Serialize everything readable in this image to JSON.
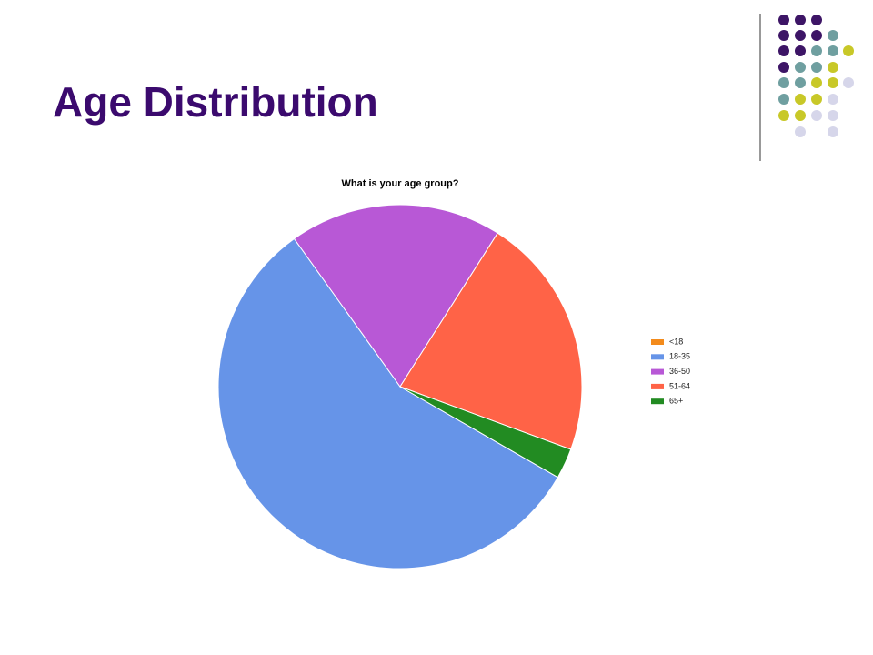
{
  "title": "Age Distribution",
  "chart_data": {
    "type": "pie",
    "title": "What is your age group?",
    "categories": [
      "<18",
      "18-35",
      "36-50",
      "51-64",
      "65+"
    ],
    "values": [
      0,
      56.8,
      18.9,
      21.6,
      2.7
    ],
    "colors": [
      "#f38b1c",
      "#6694e8",
      "#b858d6",
      "#ff6347",
      "#228b22"
    ],
    "legend": "right"
  }
}
